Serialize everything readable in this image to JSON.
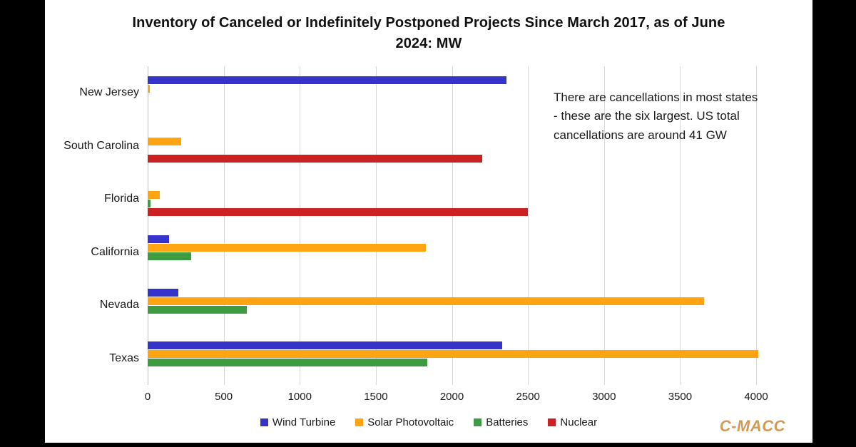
{
  "title": "Inventory of Canceled or Indefinitely Postponed Projects Since March 2017, as of June 2024: MW",
  "annotation": "There are cancellations in most states - these are the six largest. US total cancellations are around 41 GW",
  "logo_text": "C-MACC",
  "colors": {
    "wind": "#3533C9",
    "solar": "#FFA412",
    "batteries": "#3E9B42",
    "nuclear": "#CB2121",
    "logo_gold": "#D09A57",
    "gridline": "#D9D9D9",
    "axis_line": "#BFBFBF",
    "background": "#FFFFFF",
    "frame": "#000000"
  },
  "chart_data": {
    "type": "bar",
    "orientation": "horizontal",
    "title": "Inventory of Canceled or Indefinitely Postponed Projects Since March 2017, as of June 2024: MW",
    "xlabel": "",
    "ylabel": "",
    "xlim": [
      0,
      4000
    ],
    "xticks": [
      0,
      500,
      1000,
      1500,
      2000,
      2500,
      3000,
      3500,
      4000
    ],
    "grid": "vertical",
    "legend_position": "bottom",
    "categories": [
      "New Jersey",
      "South Carolina",
      "Florida",
      "California",
      "Nevada",
      "Texas"
    ],
    "series": [
      {
        "name": "Wind Turbine",
        "color": "#3533C9",
        "values": [
          2360,
          0,
          0,
          140,
          200,
          2330
        ]
      },
      {
        "name": "Solar Photovoltaic",
        "color": "#FFA412",
        "values": [
          15,
          220,
          80,
          1830,
          3660,
          4015
        ]
      },
      {
        "name": "Batteries",
        "color": "#3E9B42",
        "values": [
          0,
          0,
          20,
          285,
          650,
          1840
        ]
      },
      {
        "name": "Nuclear",
        "color": "#CB2121",
        "values": [
          0,
          2200,
          2500,
          0,
          0,
          0
        ]
      }
    ]
  }
}
